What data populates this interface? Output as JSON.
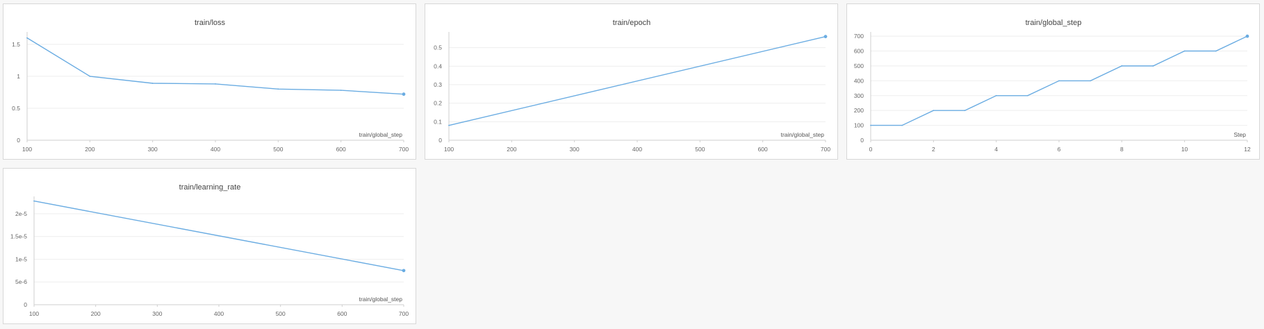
{
  "colors": {
    "series": "#6aace2"
  },
  "chart_data": [
    {
      "type": "line",
      "title": "train/loss",
      "xlabel": "train/global_step",
      "ylabel": "",
      "x": [
        100,
        200,
        300,
        400,
        500,
        600,
        700
      ],
      "series": [
        {
          "values": [
            1.6,
            1.0,
            0.89,
            0.88,
            0.8,
            0.78,
            0.72
          ]
        }
      ],
      "xlim": [
        100,
        700
      ],
      "ylim": [
        0,
        1.65
      ],
      "x_ticks": [
        100,
        200,
        300,
        400,
        500,
        600,
        700
      ],
      "x_tick_labels": [
        "100",
        "200",
        "300",
        "400",
        "500",
        "600",
        "700"
      ],
      "y_ticks": [
        0,
        0.5,
        1,
        1.5
      ],
      "y_tick_labels": [
        "0",
        "0.5",
        "1",
        "1.5"
      ],
      "grid": true
    },
    {
      "type": "line",
      "title": "train/epoch",
      "xlabel": "train/global_step",
      "ylabel": "",
      "x": [
        100,
        700
      ],
      "series": [
        {
          "values": [
            0.08,
            0.56
          ]
        }
      ],
      "xlim": [
        100,
        700
      ],
      "ylim": [
        0,
        0.57
      ],
      "x_ticks": [
        100,
        200,
        300,
        400,
        500,
        600,
        700
      ],
      "x_tick_labels": [
        "100",
        "200",
        "300",
        "400",
        "500",
        "600",
        "700"
      ],
      "y_ticks": [
        0,
        0.1,
        0.2,
        0.3,
        0.4,
        0.5
      ],
      "y_tick_labels": [
        "0",
        "0.1",
        "0.2",
        "0.3",
        "0.4",
        "0.5"
      ],
      "grid": true
    },
    {
      "type": "line",
      "title": "train/global_step",
      "xlabel": "Step",
      "ylabel": "",
      "x": [
        0,
        1,
        2,
        3,
        4,
        5,
        6,
        7,
        8,
        9,
        10,
        11,
        12
      ],
      "series": [
        {
          "values": [
            100,
            100,
            200,
            200,
            300,
            300,
            400,
            400,
            500,
            500,
            600,
            600,
            700
          ]
        }
      ],
      "xlim": [
        0,
        12
      ],
      "ylim": [
        0,
        710
      ],
      "x_ticks": [
        0,
        2,
        4,
        6,
        8,
        10,
        12
      ],
      "x_tick_labels": [
        "0",
        "2",
        "4",
        "6",
        "8",
        "10",
        "12"
      ],
      "y_ticks": [
        0,
        100,
        200,
        300,
        400,
        500,
        600,
        700
      ],
      "y_tick_labels": [
        "0",
        "100",
        "200",
        "300",
        "400",
        "500",
        "600",
        "700"
      ],
      "grid": true
    },
    {
      "type": "line",
      "title": "train/learning_rate",
      "xlabel": "train/global_step",
      "ylabel": "",
      "x": [
        100,
        700
      ],
      "series": [
        {
          "values": [
            2.28e-05,
            7.5e-06
          ]
        }
      ],
      "xlim": [
        100,
        700
      ],
      "ylim": [
        0,
        2.32e-05
      ],
      "x_ticks": [
        100,
        200,
        300,
        400,
        500,
        600,
        700
      ],
      "x_tick_labels": [
        "100",
        "200",
        "300",
        "400",
        "500",
        "600",
        "700"
      ],
      "y_ticks": [
        0,
        5e-06,
        1e-05,
        1.5e-05,
        2e-05
      ],
      "y_tick_labels": [
        "0",
        "5e-6",
        "1e-5",
        "1.5e-5",
        "2e-5"
      ],
      "grid": true
    }
  ]
}
